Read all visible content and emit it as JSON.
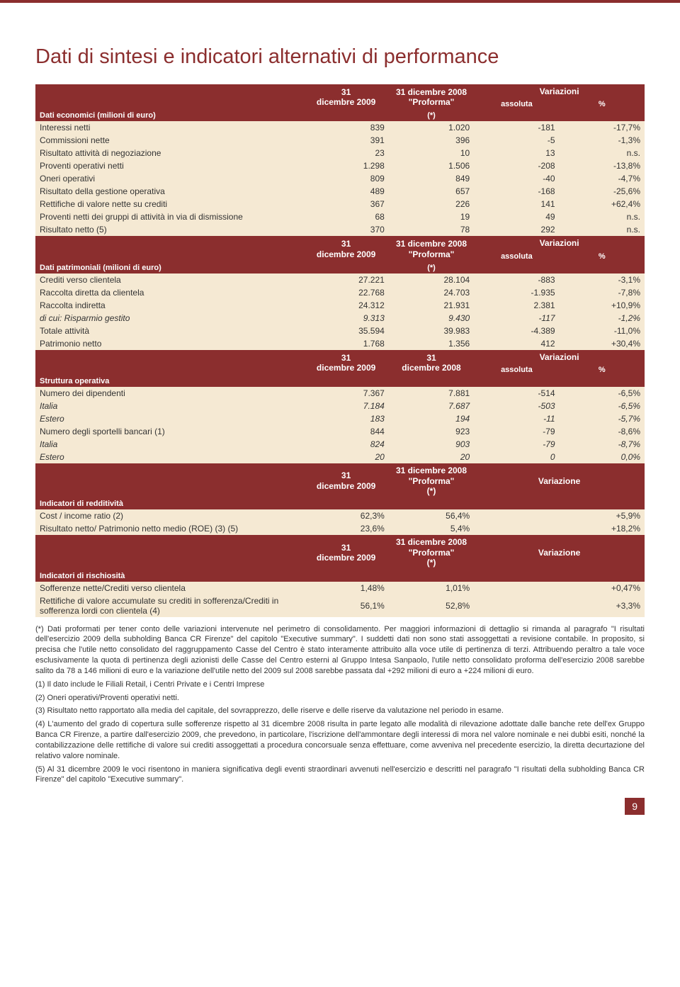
{
  "title": "Dati di sintesi e indicatori alternativi di performance",
  "colors": {
    "brand": "#8b2e2e",
    "rowbg": "#f5e9d3",
    "text": "#333333",
    "white": "#ffffff"
  },
  "common_headers": {
    "col_2009": "31 dicembre 2009",
    "col_2008_proforma": "31 dicembre 2008 \"Proforma\"",
    "col_2008_proforma_star": "(*)",
    "col_2008": "31 dicembre 2008",
    "variazioni": "Variazioni",
    "variazione": "Variazione",
    "assoluta": "assoluta",
    "pct": "%"
  },
  "sections": [
    {
      "label": "Dati economici (milioni di euro)",
      "rows": [
        {
          "label": "Interessi netti",
          "c1": "839",
          "c2": "1.020",
          "c3": "-181",
          "c4": "-17,7%"
        },
        {
          "label": "Commissioni nette",
          "c1": "391",
          "c2": "396",
          "c3": "-5",
          "c4": "-1,3%"
        },
        {
          "label": "Risultato attività di negoziazione",
          "c1": "23",
          "c2": "10",
          "c3": "13",
          "c4": "n.s."
        },
        {
          "label": "Proventi operativi netti",
          "c1": "1.298",
          "c2": "1.506",
          "c3": "-208",
          "c4": "-13,8%"
        },
        {
          "label": "Oneri operativi",
          "c1": "809",
          "c2": "849",
          "c3": "-40",
          "c4": "-4,7%"
        },
        {
          "label": "Risultato della gestione operativa",
          "c1": "489",
          "c2": "657",
          "c3": "-168",
          "c4": "-25,6%"
        },
        {
          "label": "Rettifiche di valore nette su crediti",
          "c1": "367",
          "c2": "226",
          "c3": "141",
          "c4": "+62,4%"
        },
        {
          "label": "Proventi netti dei gruppi di attività in via di dismissione",
          "c1": "68",
          "c2": "19",
          "c3": "49",
          "c4": "n.s."
        },
        {
          "label": "Risultato netto (5)",
          "c1": "370",
          "c2": "78",
          "c3": "292",
          "c4": "n.s."
        }
      ]
    },
    {
      "label": "Dati patrimoniali (milioni di euro)",
      "rows": [
        {
          "label": "Crediti verso clientela",
          "c1": "27.221",
          "c2": "28.104",
          "c3": "-883",
          "c4": "-3,1%"
        },
        {
          "label": "Raccolta diretta da clientela",
          "c1": "22.768",
          "c2": "24.703",
          "c3": "-1.935",
          "c4": "-7,8%"
        },
        {
          "label": "Raccolta indiretta",
          "c1": "24.312",
          "c2": "21.931",
          "c3": "2.381",
          "c4": "+10,9%"
        },
        {
          "label": "di cui: Risparmio gestito",
          "italic": true,
          "c1": "9.313",
          "c2": "9.430",
          "c3": "-117",
          "c4": "-1,2%"
        },
        {
          "label": "Totale attività",
          "c1": "35.594",
          "c2": "39.983",
          "c3": "-4.389",
          "c4": "-11,0%"
        },
        {
          "label": "Patrimonio netto",
          "c1": "1.768",
          "c2": "1.356",
          "c3": "412",
          "c4": "+30,4%"
        }
      ]
    },
    {
      "label": "Struttura operativa",
      "rows": [
        {
          "label": "Numero dei dipendenti",
          "c1": "7.367",
          "c2": "7.881",
          "c3": "-514",
          "c4": "-6,5%"
        },
        {
          "label": "Italia",
          "italic": true,
          "c1": "7.184",
          "c2": "7.687",
          "c3": "-503",
          "c4": "-6,5%"
        },
        {
          "label": "Estero",
          "italic": true,
          "c1": "183",
          "c2": "194",
          "c3": "-11",
          "c4": "-5,7%"
        },
        {
          "label": "Numero degli sportelli bancari (1)",
          "c1": "844",
          "c2": "923",
          "c3": "-79",
          "c4": "-8,6%"
        },
        {
          "label": "Italia",
          "italic": true,
          "c1": "824",
          "c2": "903",
          "c3": "-79",
          "c4": "-8,7%"
        },
        {
          "label": "Estero",
          "italic": true,
          "c1": "20",
          "c2": "20",
          "c3": "0",
          "c4": "0,0%"
        }
      ]
    },
    {
      "label": "Indicatori di redditività",
      "three_col": true,
      "rows": [
        {
          "label": "Cost / income ratio  (2)",
          "c1": "62,3%",
          "c2": "56,4%",
          "c3": "+5,9%"
        },
        {
          "label": "Risultato netto/ Patrimonio netto medio (ROE)   (3) (5)",
          "c1": "23,6%",
          "c2": "5,4%",
          "c3": "+18,2%"
        }
      ]
    },
    {
      "label": "Indicatori di rischiosità",
      "three_col": true,
      "rows": [
        {
          "label": "Sofferenze nette/Crediti verso clientela",
          "c1": "1,48%",
          "c2": "1,01%",
          "c3": "+0,47%"
        },
        {
          "label": "Rettifiche di valore accumulate su crediti in sofferenza/Crediti in sofferenza lordi con clientela (4)",
          "c1": "56,1%",
          "c2": "52,8%",
          "c3": "+3,3%"
        }
      ]
    }
  ],
  "footnotes": [
    "(*) Dati proformati per tener conto delle variazioni intervenute nel perimetro di consolidamento. Per maggiori informazioni di dettaglio si rimanda al paragrafo \"I risultati dell'esercizio 2009 della subholding Banca CR Firenze\" del capitolo \"Executive summary\". I suddetti dati non sono stati assoggettati a revisione contabile. In proposito, si precisa che l'utile netto consolidato del raggruppamento Casse del Centro è stato interamente attribuito alla voce utile di pertinenza di terzi. Attribuendo peraltro a tale voce esclusivamente la quota di pertinenza degli azionisti delle Casse del Centro esterni al Gruppo Intesa Sanpaolo, l'utile netto consolidato proforma dell'esercizio 2008 sarebbe salito da 78 a 146 milioni di euro e la variazione dell'utile netto del 2009 sul 2008 sarebbe passata dal +292 milioni di euro a +224 milioni di euro.",
    "(1) Il dato include le Filiali Retail, i Centri Private e i Centri Imprese",
    "(2) Oneri operativi/Proventi operativi netti.",
    "(3) Risultato netto rapportato alla media del capitale, del sovrapprezzo, delle riserve e delle riserve da valutazione nel periodo in esame.",
    "(4) L'aumento del grado di copertura sulle sofferenze rispetto al 31 dicembre 2008 risulta in parte legato alle modalità di rilevazione adottate dalle banche rete dell'ex Gruppo Banca CR Firenze, a partire dall'esercizio 2009, che prevedono, in particolare, l'iscrizione dell'ammontare degli interessi di mora nel valore nominale e nei dubbi esiti, nonché la contabilizzazione delle rettifiche di valore sui crediti assoggettati a procedura concorsuale senza effettuare, come avveniva nel precedente esercizio, la diretta decurtazione del relativo valore nominale.",
    "(5) Al 31 dicembre 2009 le voci risentono in maniera significativa degli eventi straordinari avvenuti nell'esercizio e descritti nel paragrafo \"I risultati della subholding Banca CR Firenze\" del capitolo \"Executive summary\"."
  ],
  "page_number": "9"
}
